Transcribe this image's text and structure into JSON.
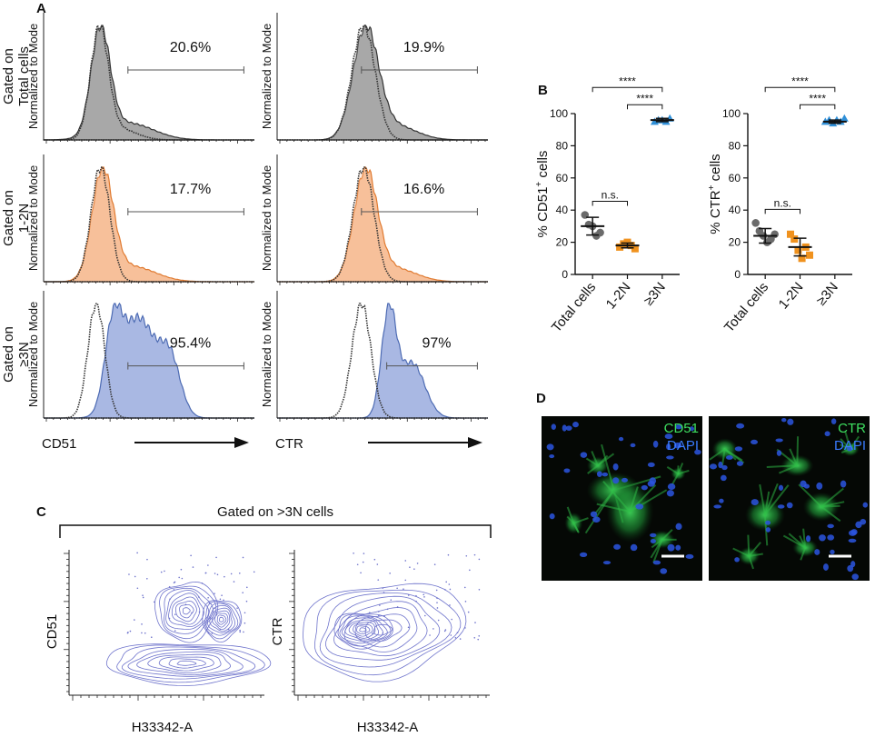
{
  "panel_labels": [
    "A",
    "B",
    "C",
    "D"
  ],
  "panel_a": {
    "y_label": "Normalized to Mode",
    "x_labels": [
      "CD51",
      "CTR"
    ],
    "rows": [
      {
        "label": [
          "Gated on",
          "Total cells"
        ],
        "percents": [
          "20.6%",
          "19.9%"
        ],
        "color": "#a8a8a8",
        "line": "#333333"
      },
      {
        "label": [
          "Gated on",
          "1-2N"
        ],
        "percents": [
          "17.7%",
          "16.6%"
        ],
        "color": "#f7c09a",
        "line": "#e07a30"
      },
      {
        "label": [
          "Gated on",
          "≥3N"
        ],
        "percents": [
          "95.4%",
          "97%"
        ],
        "color": "#a9b8e3",
        "line": "#4d6bb3"
      }
    ]
  },
  "chart_data": [
    {
      "type": "dotplot",
      "y_label": {
        "text": "% CD51",
        "sup": "+",
        "rest": " cells"
      },
      "categories": [
        "Total cells",
        "1-2N",
        "≥3N"
      ],
      "colors": [
        "#6b6b6b",
        "#f0921e",
        "#2f8fd8"
      ],
      "markers": [
        "circle",
        "square",
        "triangle"
      ],
      "values": [
        [
          37,
          31,
          30,
          24,
          26
        ],
        [
          17,
          19,
          20,
          18,
          16
        ],
        [
          95,
          96,
          96,
          95,
          97
        ]
      ],
      "means": [
        30,
        18,
        96
      ],
      "errors": [
        5.5,
        1.5,
        1
      ],
      "ylim": [
        0,
        100
      ],
      "yticks": [
        0,
        20,
        40,
        60,
        80,
        100
      ],
      "annotations": [
        {
          "text": "n.s.",
          "between": [
            0,
            1
          ]
        },
        {
          "text": "****",
          "between": [
            1,
            2
          ]
        },
        {
          "text": "****",
          "between": [
            0,
            2
          ]
        }
      ]
    },
    {
      "type": "dotplot",
      "y_label": {
        "text": "% CTR",
        "sup": "+",
        "rest": " cells"
      },
      "categories": [
        "Total cells",
        "1-2N",
        "≥3N"
      ],
      "colors": [
        "#6b6b6b",
        "#f0921e",
        "#2f8fd8"
      ],
      "markers": [
        "circle",
        "square",
        "triangle"
      ],
      "values": [
        [
          32,
          27,
          24,
          20,
          22,
          25
        ],
        [
          25,
          22,
          15,
          10,
          17,
          12
        ],
        [
          95,
          96,
          94,
          96,
          95,
          97
        ]
      ],
      "means": [
        24,
        17,
        95
      ],
      "errors": [
        4.5,
        5.5,
        1
      ],
      "ylim": [
        0,
        100
      ],
      "yticks": [
        0,
        20,
        40,
        60,
        80,
        100
      ],
      "annotations": [
        {
          "text": "n.s.",
          "between": [
            0,
            1
          ]
        },
        {
          "text": "****",
          "between": [
            1,
            2
          ]
        },
        {
          "text": "****",
          "between": [
            0,
            2
          ]
        }
      ]
    }
  ],
  "panel_c": {
    "title": "Gated on >3N cells",
    "y_labels": [
      "CD51",
      "CTR"
    ],
    "x_label": "H33342-A",
    "color": "#6f74cc"
  },
  "panel_d": {
    "images": [
      {
        "stain": "CD51",
        "counter": "DAPI"
      },
      {
        "stain": "CTR",
        "counter": "DAPI"
      }
    ]
  }
}
